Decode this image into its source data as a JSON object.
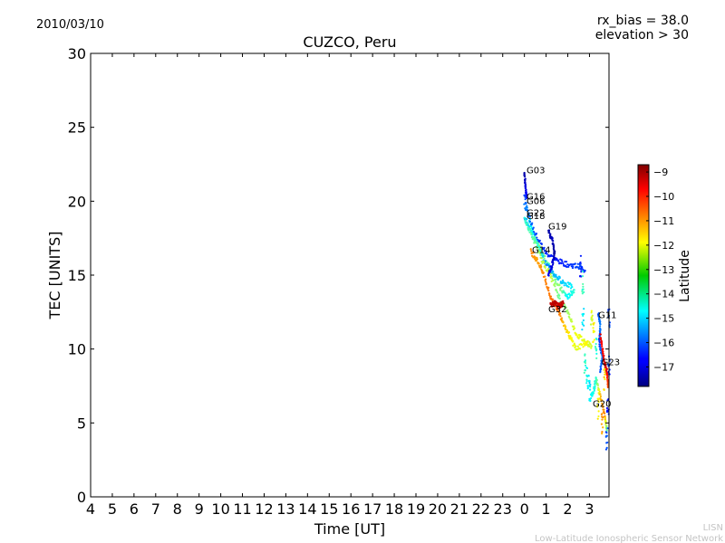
{
  "chart_data": {
    "type": "scatter",
    "date": "2010/03/10",
    "title": "CUZCO, Peru",
    "annotations": [
      "rx_bias = 38.0",
      "elevation > 30"
    ],
    "xlabel": "Time [UT]",
    "ylabel": "TEC [UNITS]",
    "x_ticks": [
      4,
      5,
      6,
      7,
      8,
      9,
      10,
      11,
      12,
      13,
      14,
      15,
      16,
      17,
      18,
      19,
      20,
      21,
      22,
      23,
      0,
      1,
      2,
      3
    ],
    "y_ticks": [
      0,
      5,
      10,
      15,
      20,
      25,
      30
    ],
    "xlim_hours": [
      4,
      27.9
    ],
    "ylim": [
      0,
      30
    ],
    "colorbar": {
      "label": "Latitude",
      "range": [
        -17.8,
        -8.7
      ],
      "ticks": [
        -9,
        -10,
        -11,
        -12,
        -13,
        -14,
        -15,
        -16,
        -17
      ]
    },
    "series": [
      {
        "name": "G03",
        "label_pos": [
          24.1,
          21.9
        ],
        "points": [
          [
            24.0,
            21.9,
            -17.5
          ],
          [
            24.05,
            21.0,
            -17.0
          ],
          [
            24.1,
            20.3,
            -16.6
          ]
        ]
      },
      {
        "name": "G16",
        "label_pos": [
          24.1,
          20.1
        ],
        "points": [
          [
            24.0,
            20.3,
            -16.2
          ],
          [
            24.2,
            19.0,
            -15.0
          ],
          [
            24.5,
            17.5,
            -13.5
          ],
          [
            24.8,
            16.5,
            -13.0
          ],
          [
            25.2,
            15.5,
            -14.0
          ],
          [
            25.6,
            14.2,
            -13.0
          ],
          [
            26.0,
            13.5,
            -14.5
          ],
          [
            26.3,
            14.0,
            -14.0
          ]
        ]
      },
      {
        "name": "G06",
        "label_pos": [
          24.1,
          19.8
        ],
        "points": [
          [
            24.0,
            19.8,
            -15.5
          ],
          [
            24.5,
            17.8,
            -16.0
          ],
          [
            25.0,
            16.5,
            -16.3
          ],
          [
            25.5,
            16.0,
            -16.5
          ],
          [
            26.0,
            15.7,
            -16.3
          ],
          [
            26.5,
            15.6,
            -16.0
          ],
          [
            26.8,
            15.3,
            -16.2
          ]
        ]
      },
      {
        "name": "G22",
        "label_pos": [
          24.1,
          19.0
        ],
        "points": [
          [
            24.0,
            19.0,
            -15.2
          ],
          [
            24.3,
            17.9,
            -14.5
          ],
          [
            24.7,
            16.8,
            -14.0
          ],
          [
            25.0,
            15.7,
            -15.5
          ],
          [
            25.4,
            15.0,
            -15.0
          ],
          [
            25.8,
            14.5,
            -14.8
          ],
          [
            26.2,
            14.2,
            -14.5
          ]
        ]
      },
      {
        "name": "G18",
        "label_pos": [
          24.1,
          18.8
        ],
        "points": [
          [
            24.0,
            18.8,
            -14.0
          ],
          [
            24.4,
            17.5,
            -13.5
          ],
          [
            24.8,
            16.0,
            -12.8
          ],
          [
            25.2,
            15.0,
            -12.5
          ],
          [
            25.6,
            13.5,
            -13.5
          ],
          [
            26.0,
            12.5,
            -13.0
          ],
          [
            26.4,
            11.0,
            -12.2
          ],
          [
            26.8,
            10.5,
            -12.4
          ],
          [
            27.1,
            10.2,
            -12.5
          ]
        ]
      },
      {
        "name": "G19",
        "label_pos": [
          25.1,
          18.1
        ],
        "points": [
          [
            25.1,
            18.0,
            -17.5
          ],
          [
            25.3,
            17.3,
            -17.2
          ],
          [
            25.4,
            16.5,
            -17.6
          ],
          [
            25.3,
            15.8,
            -17.0
          ],
          [
            25.1,
            15.0,
            -16.8
          ]
        ]
      },
      {
        "name": "G14",
        "label_pos": [
          24.35,
          16.5
        ],
        "points": [
          [
            24.3,
            16.6,
            -11.0
          ],
          [
            24.6,
            16.0,
            -11.3
          ],
          [
            24.9,
            15.0,
            -11.0
          ],
          [
            25.2,
            13.5,
            -10.9
          ],
          [
            25.5,
            12.8,
            -10.6
          ],
          [
            25.8,
            11.8,
            -11.5
          ],
          [
            26.1,
            10.8,
            -12.0
          ],
          [
            26.4,
            10.0,
            -12.4
          ],
          [
            26.9,
            10.5,
            -12.0
          ]
        ]
      },
      {
        "name": "G32",
        "label_pos": [
          25.1,
          12.5
        ],
        "points": [
          [
            25.2,
            13.0,
            -9.3
          ],
          [
            25.4,
            13.1,
            -9.2
          ],
          [
            25.6,
            12.9,
            -9.4
          ],
          [
            25.8,
            13.1,
            -9.3
          ]
        ]
      },
      {
        "name": "G11",
        "label_pos": [
          27.4,
          12.1
        ],
        "points": [
          [
            27.4,
            12.5,
            -16.0
          ],
          [
            27.5,
            11.5,
            -15.5
          ],
          [
            27.45,
            10.5,
            -16.3
          ],
          [
            27.6,
            9.5,
            -15.5
          ],
          [
            27.5,
            8.5,
            -16.0
          ]
        ]
      },
      {
        "name": "G23",
        "label_pos": [
          27.55,
          8.9
        ],
        "points": [
          [
            27.5,
            11.0,
            -9.5
          ],
          [
            27.6,
            10.0,
            -10.0
          ],
          [
            27.7,
            9.0,
            -9.3
          ],
          [
            27.8,
            8.5,
            -9.6
          ],
          [
            27.85,
            7.5,
            -10.5
          ]
        ]
      },
      {
        "name": "G20",
        "label_pos": [
          27.15,
          6.1
        ],
        "points": [
          [
            27.0,
            6.5,
            -14.5
          ],
          [
            27.2,
            7.2,
            -14.2
          ],
          [
            27.3,
            8.0,
            -14.0
          ],
          [
            27.5,
            6.8,
            -11.5
          ],
          [
            27.7,
            5.5,
            -11.0
          ],
          [
            27.8,
            4.5,
            -13.5
          ]
        ]
      },
      {
        "name": "_scatter",
        "label_pos": null,
        "points": [
          [
            26.8,
            9.0,
            -14.0
          ],
          [
            26.9,
            8.0,
            -14.3
          ],
          [
            27.0,
            7.5,
            -14.6
          ],
          [
            26.7,
            12.0,
            -14.5
          ],
          [
            27.1,
            12.0,
            -12.5
          ],
          [
            27.2,
            11.0,
            -12.0
          ],
          [
            27.3,
            10.0,
            -14.0
          ],
          [
            27.7,
            8.0,
            -11.8
          ],
          [
            27.9,
            12.0,
            -16.0
          ],
          [
            27.9,
            9.0,
            -16.2
          ],
          [
            27.85,
            6.0,
            -16.5
          ],
          [
            27.8,
            4.0,
            -16.0
          ],
          [
            27.6,
            5.0,
            -11.2
          ],
          [
            27.4,
            6.0,
            -12.0
          ],
          [
            26.6,
            15.5,
            -16.4
          ],
          [
            26.7,
            14.5,
            -13.8
          ]
        ]
      }
    ]
  },
  "footer": {
    "org_short": "LISN",
    "org_long": "Low-Latitude Ionospheric Sensor Network"
  }
}
